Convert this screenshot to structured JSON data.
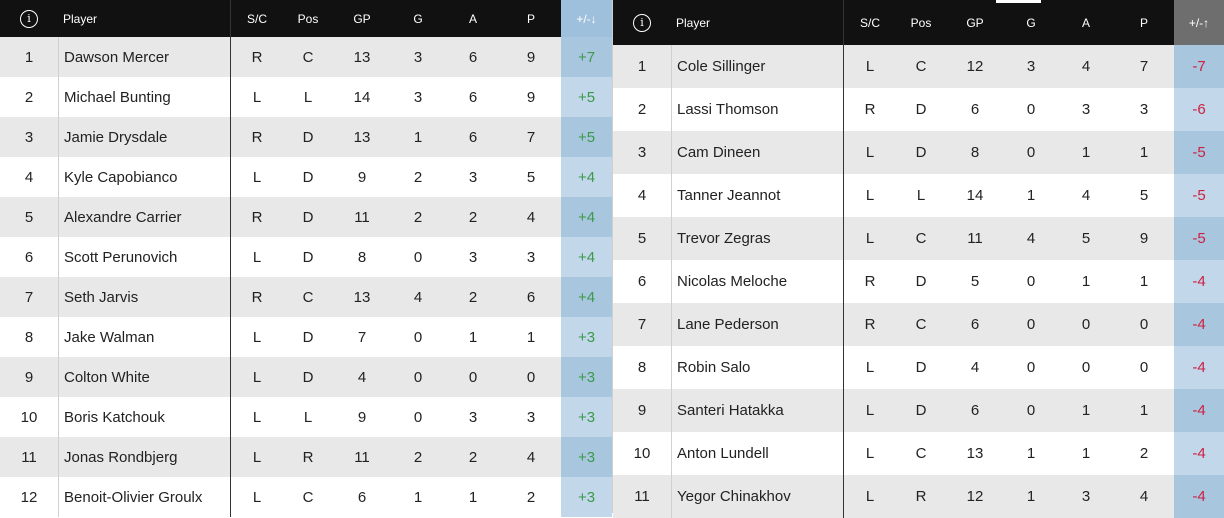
{
  "tables": [
    {
      "headers": {
        "info": "i",
        "player": "Player",
        "sc": "S/C",
        "pos": "Pos",
        "gp": "GP",
        "g": "G",
        "a": "A",
        "p": "P",
        "pm": "+/-↓"
      },
      "rows": [
        {
          "rank": "1",
          "player": "Dawson Mercer",
          "sc": "R",
          "pos": "C",
          "gp": "13",
          "g": "3",
          "a": "6",
          "p": "9",
          "pm": "+7"
        },
        {
          "rank": "2",
          "player": "Michael Bunting",
          "sc": "L",
          "pos": "L",
          "gp": "14",
          "g": "3",
          "a": "6",
          "p": "9",
          "pm": "+5"
        },
        {
          "rank": "3",
          "player": "Jamie Drysdale",
          "sc": "R",
          "pos": "D",
          "gp": "13",
          "g": "1",
          "a": "6",
          "p": "7",
          "pm": "+5"
        },
        {
          "rank": "4",
          "player": "Kyle Capobianco",
          "sc": "L",
          "pos": "D",
          "gp": "9",
          "g": "2",
          "a": "3",
          "p": "5",
          "pm": "+4"
        },
        {
          "rank": "5",
          "player": "Alexandre Carrier",
          "sc": "R",
          "pos": "D",
          "gp": "11",
          "g": "2",
          "a": "2",
          "p": "4",
          "pm": "+4"
        },
        {
          "rank": "6",
          "player": "Scott Perunovich",
          "sc": "L",
          "pos": "D",
          "gp": "8",
          "g": "0",
          "a": "3",
          "p": "3",
          "pm": "+4"
        },
        {
          "rank": "7",
          "player": "Seth Jarvis",
          "sc": "R",
          "pos": "C",
          "gp": "13",
          "g": "4",
          "a": "2",
          "p": "6",
          "pm": "+4"
        },
        {
          "rank": "8",
          "player": "Jake Walman",
          "sc": "L",
          "pos": "D",
          "gp": "7",
          "g": "0",
          "a": "1",
          "p": "1",
          "pm": "+3"
        },
        {
          "rank": "9",
          "player": "Colton White",
          "sc": "L",
          "pos": "D",
          "gp": "4",
          "g": "0",
          "a": "0",
          "p": "0",
          "pm": "+3"
        },
        {
          "rank": "10",
          "player": "Boris Katchouk",
          "sc": "L",
          "pos": "L",
          "gp": "9",
          "g": "0",
          "a": "3",
          "p": "3",
          "pm": "+3"
        },
        {
          "rank": "11",
          "player": "Jonas Rondbjerg",
          "sc": "L",
          "pos": "R",
          "gp": "11",
          "g": "2",
          "a": "2",
          "p": "4",
          "pm": "+3"
        },
        {
          "rank": "12",
          "player": "Benoit-Olivier Groulx",
          "sc": "L",
          "pos": "C",
          "gp": "6",
          "g": "1",
          "a": "1",
          "p": "2",
          "pm": "+3"
        }
      ]
    },
    {
      "headers": {
        "info": "i",
        "player": "Player",
        "sc": "S/C",
        "pos": "Pos",
        "gp": "GP",
        "g": "G",
        "a": "A",
        "p": "P",
        "pm": "+/-↑"
      },
      "rows": [
        {
          "rank": "1",
          "player": "Cole Sillinger",
          "sc": "L",
          "pos": "C",
          "gp": "12",
          "g": "3",
          "a": "4",
          "p": "7",
          "pm": "-7"
        },
        {
          "rank": "2",
          "player": "Lassi Thomson",
          "sc": "R",
          "pos": "D",
          "gp": "6",
          "g": "0",
          "a": "3",
          "p": "3",
          "pm": "-6"
        },
        {
          "rank": "3",
          "player": "Cam Dineen",
          "sc": "L",
          "pos": "D",
          "gp": "8",
          "g": "0",
          "a": "1",
          "p": "1",
          "pm": "-5"
        },
        {
          "rank": "4",
          "player": "Tanner Jeannot",
          "sc": "L",
          "pos": "L",
          "gp": "14",
          "g": "1",
          "a": "4",
          "p": "5",
          "pm": "-5"
        },
        {
          "rank": "5",
          "player": "Trevor Zegras",
          "sc": "L",
          "pos": "C",
          "gp": "11",
          "g": "4",
          "a": "5",
          "p": "9",
          "pm": "-5"
        },
        {
          "rank": "6",
          "player": "Nicolas Meloche",
          "sc": "R",
          "pos": "D",
          "gp": "5",
          "g": "0",
          "a": "1",
          "p": "1",
          "pm": "-4"
        },
        {
          "rank": "7",
          "player": "Lane Pederson",
          "sc": "R",
          "pos": "C",
          "gp": "6",
          "g": "0",
          "a": "0",
          "p": "0",
          "pm": "-4"
        },
        {
          "rank": "8",
          "player": "Robin Salo",
          "sc": "L",
          "pos": "D",
          "gp": "4",
          "g": "0",
          "a": "0",
          "p": "0",
          "pm": "-4"
        },
        {
          "rank": "9",
          "player": "Santeri Hatakka",
          "sc": "L",
          "pos": "D",
          "gp": "6",
          "g": "0",
          "a": "1",
          "p": "1",
          "pm": "-4"
        },
        {
          "rank": "10",
          "player": "Anton Lundell",
          "sc": "L",
          "pos": "C",
          "gp": "13",
          "g": "1",
          "a": "1",
          "p": "2",
          "pm": "-4"
        },
        {
          "rank": "11",
          "player": "Yegor Chinakhov",
          "sc": "L",
          "pos": "R",
          "gp": "12",
          "g": "1",
          "a": "3",
          "p": "4",
          "pm": "-4"
        }
      ]
    }
  ]
}
